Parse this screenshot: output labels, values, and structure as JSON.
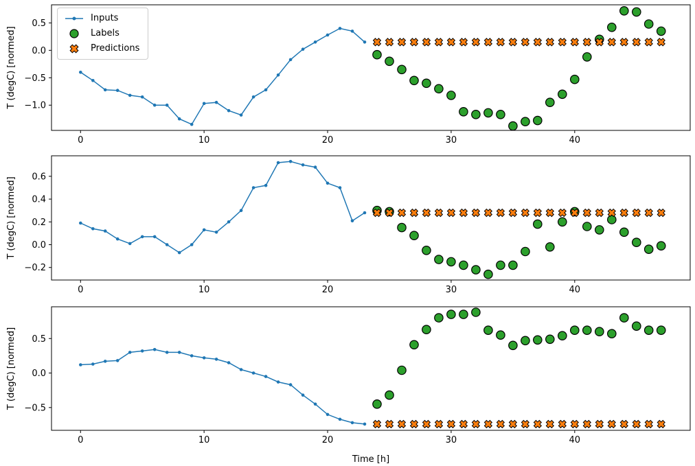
{
  "figure": {
    "xlabel": "Time [h]",
    "ylabel": "T (degC) [normed]",
    "series_colors": {
      "inputs": "#1f77b4",
      "labels": "#2ca02c",
      "predictions": "#ff7f0e"
    },
    "legend": [
      {
        "label": "Inputs"
      },
      {
        "label": "Labels"
      },
      {
        "label": "Predictions"
      }
    ]
  },
  "chart_data": [
    {
      "type": "line",
      "title": "",
      "xlabel": "",
      "ylabel": "T (degC) [normed]",
      "xlim": [
        -2.35,
        49.35
      ],
      "ylim": [
        -1.46,
        0.83
      ],
      "xticks": [
        0,
        10,
        20,
        30,
        40
      ],
      "yticks": [
        0.5,
        0.0,
        -0.5,
        -1.0
      ],
      "grid": false,
      "legend_position": "upper left",
      "series": [
        {
          "name": "Inputs",
          "marker": "line-dot",
          "color": "#1f77b4",
          "x": [
            0,
            1,
            2,
            3,
            4,
            5,
            6,
            7,
            8,
            9,
            10,
            11,
            12,
            13,
            14,
            15,
            16,
            17,
            18,
            19,
            20,
            21,
            22,
            23
          ],
          "y": [
            -0.4,
            -0.55,
            -0.72,
            -0.73,
            -0.82,
            -0.85,
            -1.0,
            -1.0,
            -1.25,
            -1.35,
            -0.97,
            -0.95,
            -1.1,
            -1.18,
            -0.85,
            -0.72,
            -0.45,
            -0.17,
            0.02,
            0.15,
            0.28,
            0.4,
            0.35,
            0.15
          ]
        },
        {
          "name": "Labels",
          "marker": "circle",
          "color": "#2ca02c",
          "x": [
            24,
            25,
            26,
            27,
            28,
            29,
            30,
            31,
            32,
            33,
            34,
            35,
            36,
            37,
            38,
            39,
            40,
            41,
            42,
            43,
            44,
            45,
            46,
            47
          ],
          "y": [
            -0.08,
            -0.2,
            -0.35,
            -0.55,
            -0.6,
            -0.7,
            -0.82,
            -1.12,
            -1.17,
            -1.14,
            -1.17,
            -1.38,
            -1.3,
            -1.28,
            -0.95,
            -0.8,
            -0.53,
            -0.12,
            0.2,
            0.42,
            0.72,
            0.7,
            0.48,
            0.35
          ]
        },
        {
          "name": "Predictions",
          "marker": "x",
          "color": "#ff7f0e",
          "x": [
            24,
            25,
            26,
            27,
            28,
            29,
            30,
            31,
            32,
            33,
            34,
            35,
            36,
            37,
            38,
            39,
            40,
            41,
            42,
            43,
            44,
            45,
            46,
            47
          ],
          "y": [
            0.15,
            0.15,
            0.15,
            0.15,
            0.15,
            0.15,
            0.15,
            0.15,
            0.15,
            0.15,
            0.15,
            0.15,
            0.15,
            0.15,
            0.15,
            0.15,
            0.15,
            0.15,
            0.15,
            0.15,
            0.15,
            0.15,
            0.15,
            0.15
          ]
        }
      ]
    },
    {
      "type": "line",
      "title": "",
      "xlabel": "",
      "ylabel": "T (degC) [normed]",
      "xlim": [
        -2.35,
        49.35
      ],
      "ylim": [
        -0.31,
        0.78
      ],
      "xticks": [
        0,
        10,
        20,
        30,
        40
      ],
      "yticks": [
        0.6,
        0.4,
        0.2,
        0.0,
        -0.2
      ],
      "grid": false,
      "series": [
        {
          "name": "Inputs",
          "marker": "line-dot",
          "color": "#1f77b4",
          "x": [
            0,
            1,
            2,
            3,
            4,
            5,
            6,
            7,
            8,
            9,
            10,
            11,
            12,
            13,
            14,
            15,
            16,
            17,
            18,
            19,
            20,
            21,
            22,
            23
          ],
          "y": [
            0.19,
            0.14,
            0.12,
            0.05,
            0.01,
            0.07,
            0.07,
            0.0,
            -0.07,
            0.0,
            0.13,
            0.11,
            0.2,
            0.3,
            0.5,
            0.52,
            0.72,
            0.73,
            0.7,
            0.68,
            0.54,
            0.5,
            0.21,
            0.28
          ]
        },
        {
          "name": "Labels",
          "marker": "circle",
          "color": "#2ca02c",
          "x": [
            24,
            25,
            26,
            27,
            28,
            29,
            30,
            31,
            32,
            33,
            34,
            35,
            36,
            37,
            38,
            39,
            40,
            41,
            42,
            43,
            44,
            45,
            46,
            47
          ],
          "y": [
            0.3,
            0.29,
            0.15,
            0.08,
            -0.05,
            -0.13,
            -0.15,
            -0.18,
            -0.22,
            -0.26,
            -0.18,
            -0.18,
            -0.06,
            0.18,
            -0.02,
            0.2,
            0.29,
            0.16,
            0.13,
            0.22,
            0.11,
            0.02,
            -0.04,
            -0.01
          ]
        },
        {
          "name": "Predictions",
          "marker": "x",
          "color": "#ff7f0e",
          "x": [
            24,
            25,
            26,
            27,
            28,
            29,
            30,
            31,
            32,
            33,
            34,
            35,
            36,
            37,
            38,
            39,
            40,
            41,
            42,
            43,
            44,
            45,
            46,
            47
          ],
          "y": [
            0.28,
            0.28,
            0.28,
            0.28,
            0.28,
            0.28,
            0.28,
            0.28,
            0.28,
            0.28,
            0.28,
            0.28,
            0.28,
            0.28,
            0.28,
            0.28,
            0.28,
            0.28,
            0.28,
            0.28,
            0.28,
            0.28,
            0.28,
            0.28
          ]
        }
      ]
    },
    {
      "type": "line",
      "title": "",
      "xlabel": "Time [h]",
      "ylabel": "T (degC) [normed]",
      "xlim": [
        -2.35,
        49.35
      ],
      "ylim": [
        -0.83,
        0.96
      ],
      "xticks": [
        0,
        10,
        20,
        30,
        40
      ],
      "yticks": [
        0.5,
        0.0,
        -0.5
      ],
      "grid": false,
      "series": [
        {
          "name": "Inputs",
          "marker": "line-dot",
          "color": "#1f77b4",
          "x": [
            0,
            1,
            2,
            3,
            4,
            5,
            6,
            7,
            8,
            9,
            10,
            11,
            12,
            13,
            14,
            15,
            16,
            17,
            18,
            19,
            20,
            21,
            22,
            23
          ],
          "y": [
            0.12,
            0.13,
            0.17,
            0.18,
            0.3,
            0.32,
            0.34,
            0.3,
            0.3,
            0.25,
            0.22,
            0.2,
            0.15,
            0.05,
            0.0,
            -0.05,
            -0.13,
            -0.17,
            -0.32,
            -0.45,
            -0.6,
            -0.67,
            -0.72,
            -0.74
          ]
        },
        {
          "name": "Labels",
          "marker": "circle",
          "color": "#2ca02c",
          "x": [
            24,
            25,
            26,
            27,
            28,
            29,
            30,
            31,
            32,
            33,
            34,
            35,
            36,
            37,
            38,
            39,
            40,
            41,
            42,
            43,
            44,
            45,
            46,
            47
          ],
          "y": [
            -0.45,
            -0.32,
            0.04,
            0.41,
            0.63,
            0.8,
            0.85,
            0.85,
            0.88,
            0.62,
            0.55,
            0.4,
            0.47,
            0.48,
            0.49,
            0.54,
            0.62,
            0.62,
            0.6,
            0.57,
            0.8,
            0.68,
            0.62,
            0.62
          ]
        },
        {
          "name": "Predictions",
          "marker": "x",
          "color": "#ff7f0e",
          "x": [
            24,
            25,
            26,
            27,
            28,
            29,
            30,
            31,
            32,
            33,
            34,
            35,
            36,
            37,
            38,
            39,
            40,
            41,
            42,
            43,
            44,
            45,
            46,
            47
          ],
          "y": [
            -0.74,
            -0.74,
            -0.74,
            -0.74,
            -0.74,
            -0.74,
            -0.74,
            -0.74,
            -0.74,
            -0.74,
            -0.74,
            -0.74,
            -0.74,
            -0.74,
            -0.74,
            -0.74,
            -0.74,
            -0.74,
            -0.74,
            -0.74,
            -0.74,
            -0.74,
            -0.74,
            -0.74
          ]
        }
      ]
    }
  ]
}
